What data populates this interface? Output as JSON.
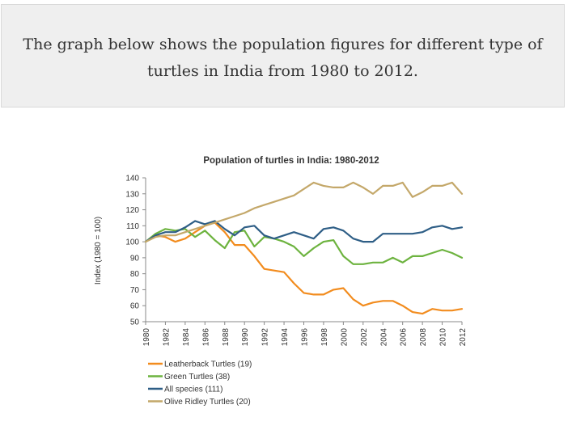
{
  "prompt": {
    "text": "The graph below shows the population figures for different type of turtles in India from 1980 to 2012."
  },
  "chart_data": {
    "type": "line",
    "title": "Population of turtles in India: 1980-2012",
    "ylabel": "Index (1980 = 100)",
    "xlabel": "",
    "ylim": [
      50,
      140
    ],
    "yticks": [
      50,
      60,
      70,
      80,
      90,
      100,
      110,
      120,
      130,
      140
    ],
    "xticks": [
      "1980",
      "1982",
      "1984",
      "1986",
      "1988",
      "1990",
      "1992",
      "1994",
      "1996",
      "1998",
      "2000",
      "2002",
      "2004",
      "2006",
      "2008",
      "2010",
      "2012"
    ],
    "x": [
      1980,
      1981,
      1982,
      1983,
      1984,
      1985,
      1986,
      1987,
      1988,
      1989,
      1990,
      1991,
      1992,
      1993,
      1994,
      1995,
      1996,
      1997,
      1998,
      1999,
      2000,
      2001,
      2002,
      2003,
      2004,
      2005,
      2006,
      2007,
      2008,
      2009,
      2010,
      2011,
      2012
    ],
    "grid": false,
    "legend_position": "bottom-left",
    "series": [
      {
        "name": "Leatherback Turtles (19)",
        "color": "#F28C1E",
        "values": [
          100,
          104,
          103,
          100,
          102,
          106,
          110,
          112,
          106,
          98,
          98,
          91,
          83,
          82,
          81,
          74,
          68,
          67,
          67,
          70,
          71,
          64,
          60,
          62,
          63,
          63,
          60,
          56,
          55,
          58,
          57,
          57,
          58
        ]
      },
      {
        "name": "Green Turtles (38)",
        "color": "#6DB33F",
        "values": [
          100,
          105,
          108,
          107,
          108,
          103,
          107,
          101,
          96,
          106,
          107,
          97,
          103,
          102,
          100,
          97,
          91,
          96,
          100,
          101,
          91,
          86,
          86,
          87,
          87,
          90,
          87,
          91,
          91,
          93,
          95,
          93,
          90
        ]
      },
      {
        "name": "All species (111)",
        "color": "#2E5E86",
        "values": [
          100,
          104,
          106,
          106,
          109,
          113,
          111,
          113,
          108,
          104,
          109,
          110,
          104,
          102,
          104,
          106,
          104,
          102,
          108,
          109,
          107,
          102,
          100,
          100,
          105,
          105,
          105,
          105,
          106,
          109,
          110,
          108,
          109
        ]
      },
      {
        "name": "Olive Ridley Turtles (20)",
        "color": "#C4A86A",
        "values": [
          100,
          103,
          104,
          104,
          106,
          108,
          110,
          112,
          114,
          116,
          118,
          121,
          123,
          125,
          127,
          129,
          133,
          137,
          135,
          134,
          134,
          137,
          134,
          130,
          135,
          135,
          137,
          128,
          131,
          135,
          135,
          137,
          130
        ]
      }
    ]
  }
}
